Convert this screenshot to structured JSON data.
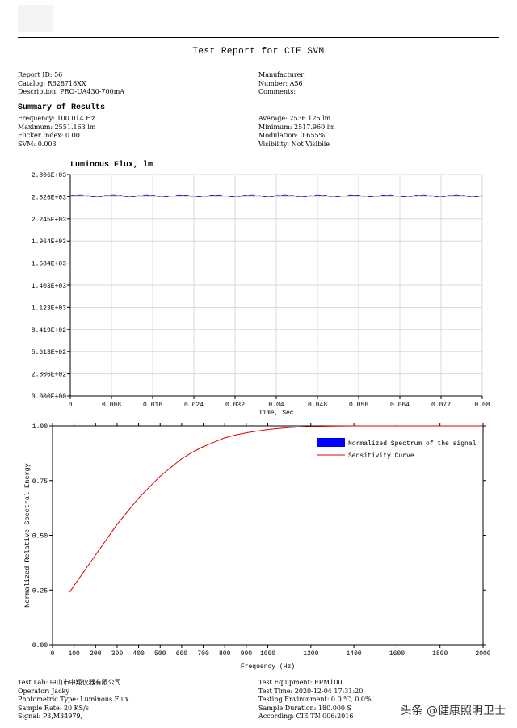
{
  "report": {
    "title": "Test Report for CIE SVM",
    "left_info": [
      "Report ID: 56",
      "Catalog: R628718XX",
      "Description: PRO-UA430-700mA"
    ],
    "right_info": [
      "Manufacturer:",
      "Number: A56",
      "Comments:"
    ],
    "summary_heading": "Summary of Results",
    "summary_left": [
      "Frequency: 100.014 Hz",
      "Maximum: 2551.163 lm",
      "Flicker Index: 0.001",
      "SVM: 0.003"
    ],
    "summary_right": [
      "Average: 2536.125 lm",
      "Minimum: 2517.960 lm",
      "Modulation: 0.655%",
      "Visibility: Not Visibile"
    ]
  },
  "footer": {
    "left": [
      "Test Lab: 中山市中翔仪器有限公司",
      "Operator: Jacky",
      "Photometric Type: Luminous Flux",
      "Sample Rate: 20 KS/s",
      "Signal: P3,M34979,"
    ],
    "right": [
      "Test Equipment: FPM100",
      "Test Time: 2020-12-04 17:31:20",
      "Testing Environment: 0.0 ℃, 0.0%",
      "Sample Duration: 180.000 S",
      "According: CIE TN 006:2016"
    ]
  },
  "watermark": "头条 @健康照明卫士",
  "chart_data": [
    {
      "type": "line",
      "title": "Luminous Flux, lm",
      "xlabel": "Time, Sec",
      "ylabel": "",
      "xlim": [
        0,
        0.08
      ],
      "ylim": [
        0,
        2806
      ],
      "x_ticks": [
        0,
        0.008,
        0.016,
        0.024,
        0.032,
        0.04,
        0.048,
        0.056,
        0.064,
        0.072,
        0.08
      ],
      "x_tick_labels": [
        "0",
        "0.008",
        "0.016",
        "0.024",
        "0.032",
        "0.04",
        "0.048",
        "0.056",
        "0.064",
        "0.072",
        "0.08"
      ],
      "y_ticks": [
        0,
        280.6,
        561.3,
        841.9,
        1123,
        1403,
        1684,
        1964,
        2245,
        2526,
        2806
      ],
      "y_tick_labels": [
        "0.000E+00",
        "2.806E+02",
        "5.613E+02",
        "8.419E+02",
        "1.123E+03",
        "1.403E+03",
        "1.684E+03",
        "1.964E+03",
        "2.245E+03",
        "2.526E+03",
        "2.806E+03"
      ],
      "grid": true,
      "series": [
        {
          "color": "#0000cc",
          "mean": 2536.125,
          "amplitude": 9,
          "frequency_hz": 100.014,
          "x_range": [
            0,
            0.08
          ]
        }
      ]
    },
    {
      "type": "line",
      "title": "",
      "xlabel": "Frequency (Hz)",
      "ylabel": "Normalized Relative Spectral Energy",
      "xlim": [
        0,
        2000
      ],
      "ylim": [
        0,
        1
      ],
      "x_ticks": [
        0,
        100,
        200,
        300,
        400,
        500,
        600,
        700,
        800,
        900,
        1000,
        1200,
        1400,
        1600,
        1800,
        2000
      ],
      "x_tick_labels": [
        "0",
        "100",
        "200",
        "300",
        "400",
        "500",
        "600",
        "700",
        "800",
        "900",
        "1000",
        "1200",
        "1400",
        "1600",
        "1800",
        "2000"
      ],
      "y_ticks": [
        0,
        0.25,
        0.5,
        0.75,
        1
      ],
      "y_tick_labels": [
        "0.00",
        "0.25",
        "0.50",
        "0.75",
        "1.00"
      ],
      "grid": false,
      "legend": {
        "position": "top-right",
        "entries": [
          "Normalized Spectrum of the signal",
          "Sensitivity Curve"
        ],
        "colors": [
          "#0000ff",
          "#e00000"
        ]
      },
      "series": [
        {
          "name": "Sensitivity Curve",
          "color": "#e00000",
          "x": [
            80,
            100,
            150,
            200,
            250,
            300,
            350,
            400,
            450,
            500,
            550,
            600,
            650,
            700,
            750,
            800,
            850,
            900,
            950,
            1000,
            1050,
            1100,
            1150,
            1200,
            1300,
            1400,
            1500,
            2000
          ],
          "y": [
            0.24,
            0.27,
            0.34,
            0.41,
            0.48,
            0.55,
            0.61,
            0.67,
            0.72,
            0.77,
            0.81,
            0.85,
            0.88,
            0.905,
            0.925,
            0.945,
            0.958,
            0.968,
            0.976,
            0.983,
            0.988,
            0.992,
            0.995,
            0.997,
            0.999,
            1.0,
            1.0,
            1.0
          ]
        }
      ]
    }
  ]
}
